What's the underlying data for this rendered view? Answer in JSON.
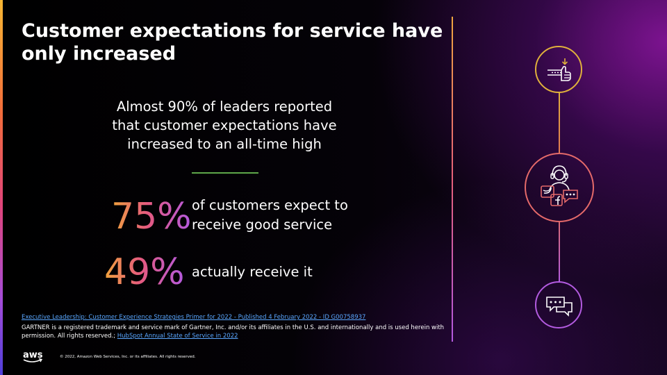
{
  "slide": {
    "title": "Customer expectations for service have only increased",
    "lead": "Almost 90% of leaders reported that customer expectations have increased to an all-time high",
    "stats": [
      {
        "value": "75%",
        "text": "of customers expect to receive good service"
      },
      {
        "value": "49%",
        "text": "actually receive it"
      }
    ]
  },
  "footer": {
    "source_link": "Executive Leadership: Customer Experience Strategies Primer for 2022 - Published 4 February 2022 - ID G00758937",
    "legal_text": "GARTNER is a registered trademark and service mark of Gartner, Inc. and/or its affiliates in the U.S. and internationally and is used herein with permission. All rights reserved.;",
    "hubspot_link": "HubSpot Annual State of Service in 2022",
    "logo_text": "aws",
    "copyright": "© 2022, Amazon Web Services, Inc. or its affiliates. All rights reserved."
  },
  "icons": [
    "thumbs-up-icon",
    "support-agent-social-icon",
    "chat-bubbles-icon"
  ],
  "colors": {
    "gold": "#e0b13c",
    "coral": "#e56a6a",
    "purple": "#b35be0",
    "link": "#5aa7ff",
    "divider": "#5fa84a"
  }
}
